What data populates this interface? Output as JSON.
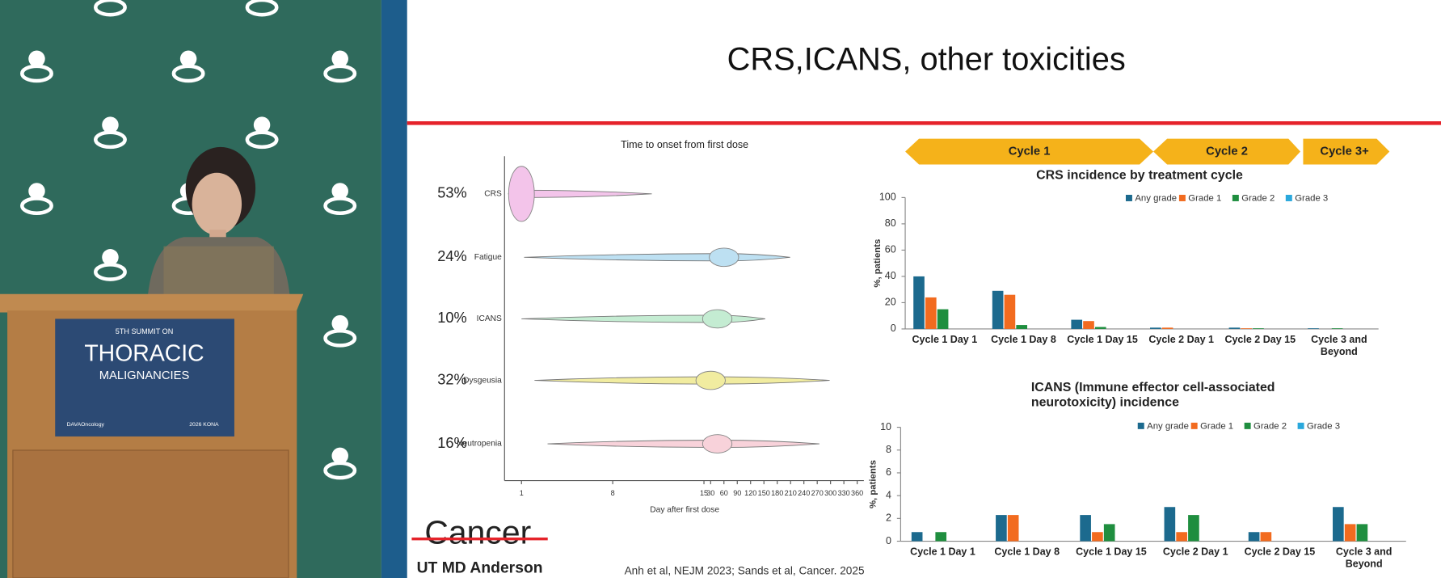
{
  "slide_title": "CRS,ICANS, other toxicities",
  "cycle_banner": [
    "Cycle 1",
    "Cycle 2",
    "Cycle 3+"
  ],
  "citation": "Anh et al, NEJM 2023; Sands et al, Cancer. 2025",
  "logo": {
    "top": "Cancer",
    "bottom": "UT MD Anderson"
  },
  "photo": {
    "sign_line1": "5TH SUMMIT ON",
    "sign_line2": "THORACIC",
    "sign_line3": "MALIGNANCIES",
    "sign_left": "DAVAOncology",
    "sign_right": "2026 KONA"
  },
  "chart_data": [
    {
      "type": "violin",
      "title": "Time to onset from first dose",
      "x_label": "Day after first dose",
      "categories": [
        "CRS",
        "Fatigue",
        "ICANS",
        "Dysgeusia",
        "Neutropenia"
      ],
      "values": [
        53,
        24,
        10,
        32,
        16
      ],
      "value_labels": [
        "53%",
        "24%",
        "10%",
        "32%",
        "16%"
      ],
      "min": [
        0,
        1.2,
        1,
        2,
        3
      ],
      "max": [
        11,
        209,
        153,
        298,
        275
      ],
      "peak": [
        1,
        60,
        45,
        30,
        45
      ],
      "colors": [
        "#f3c4ea",
        "#bde0f2",
        "#c4ecd2",
        "#f1eca0",
        "#f8d2da"
      ],
      "xlim": [
        -0.3,
        375
      ],
      "xticks": [
        1,
        8,
        15,
        30,
        60,
        90,
        120,
        150,
        180,
        210,
        240,
        270,
        300,
        330,
        360
      ]
    },
    {
      "type": "bar",
      "title": "CRS incidence by treatment cycle",
      "y_label": "%, patients",
      "categories": [
        "Cycle 1 Day 1",
        "Cycle 1 Day 8",
        "Cycle 1 Day 15",
        "Cycle 2 Day 1",
        "Cycle 2 Day 15",
        "Cycle 3 and Beyond"
      ],
      "series": [
        {
          "name": "Any grade",
          "color": "#1c6a8e",
          "values": [
            40,
            29,
            7,
            1,
            1,
            0.5
          ]
        },
        {
          "name": "Grade 1",
          "color": "#f26b1f",
          "values": [
            24,
            26,
            6,
            1,
            0.5,
            0
          ]
        },
        {
          "name": "Grade 2",
          "color": "#1f8e3f",
          "values": [
            15,
            3,
            1.5,
            0,
            0.5,
            0.5
          ]
        },
        {
          "name": "Grade 3",
          "color": "#2aa8dc",
          "values": [
            0,
            0,
            0,
            0,
            0,
            0
          ]
        }
      ],
      "ylim": [
        0,
        100
      ],
      "yticks": [
        0,
        20,
        40,
        60,
        80,
        100
      ]
    },
    {
      "type": "bar",
      "title": "ICANS (Immune effector cell-associated neurotoxicity) incidence",
      "y_label": "%, patients",
      "categories": [
        "Cycle 1 Day 1",
        "Cycle 1 Day 8",
        "Cycle 1 Day 15",
        "Cycle 2 Day 1",
        "Cycle 2 Day 15",
        "Cycle 3 and Beyond"
      ],
      "series": [
        {
          "name": "Any grade",
          "color": "#1c6a8e",
          "values": [
            0.8,
            2.3,
            2.3,
            3,
            0.8,
            3
          ]
        },
        {
          "name": "Grade 1",
          "color": "#f26b1f",
          "values": [
            0,
            2.3,
            0.8,
            0.8,
            0.8,
            1.5
          ]
        },
        {
          "name": "Grade 2",
          "color": "#1f8e3f",
          "values": [
            0.8,
            0,
            1.5,
            2.3,
            0,
            1.5
          ]
        },
        {
          "name": "Grade 3",
          "color": "#2aa8dc",
          "values": [
            0,
            0,
            0,
            0,
            0,
            0
          ]
        }
      ],
      "ylim": [
        0,
        10
      ],
      "yticks": [
        0,
        2,
        4,
        6,
        8,
        10
      ]
    }
  ]
}
